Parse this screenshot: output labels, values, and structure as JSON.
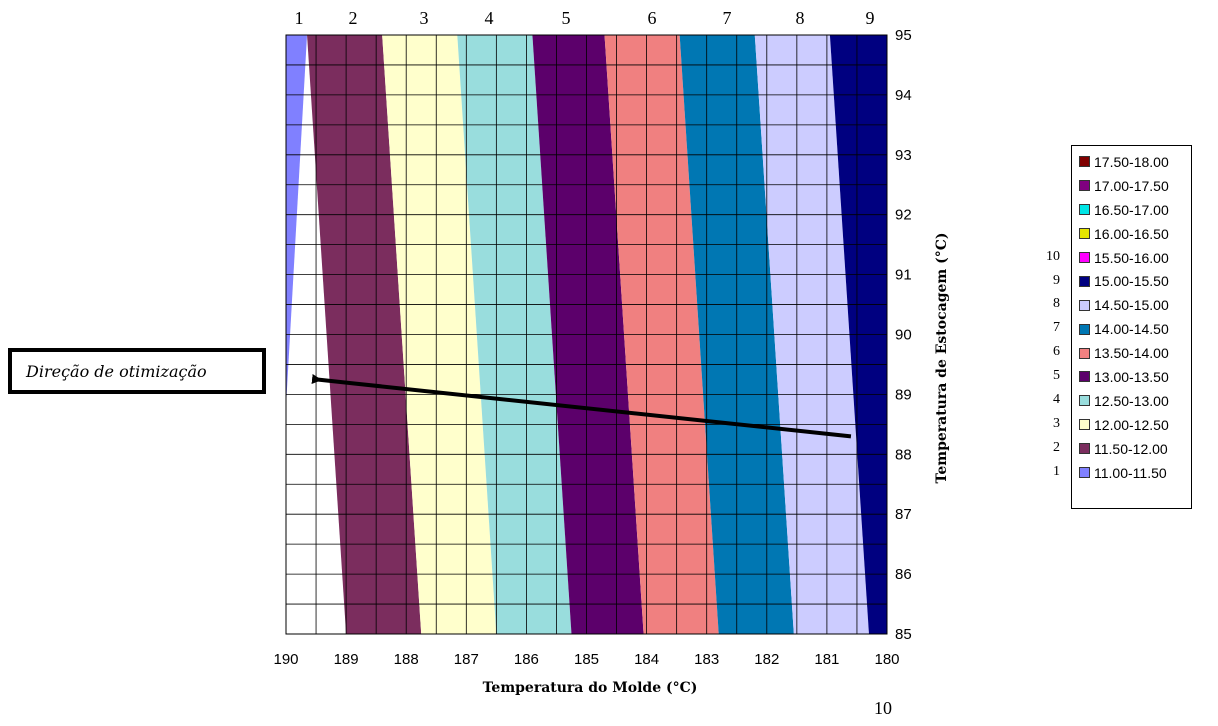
{
  "chart_data": {
    "type": "contour",
    "title": "",
    "xlabel": "Temperatura do Molde (°C)",
    "ylabel": "Temperatura de Estocagem (°C)",
    "x_ticks": [
      190,
      189,
      188,
      187,
      186,
      185,
      184,
      183,
      182,
      181,
      180
    ],
    "y_ticks": [
      85,
      86,
      87,
      88,
      89,
      90,
      91,
      92,
      93,
      94,
      95
    ],
    "xlim": [
      190,
      180
    ],
    "ylim": [
      85,
      95
    ],
    "grid": true,
    "legend_position": "right",
    "bands": [
      {
        "range": "11.00-11.50",
        "color": "#8080ff",
        "number": "1",
        "x_bottom": 190.0,
        "x_top": 190.0
      },
      {
        "range": "11.50-12.00",
        "color": "#7b2d5e",
        "number": "2",
        "x_bottom": 189.0,
        "x_top": 189.65
      },
      {
        "range": "12.00-12.50",
        "color": "#ffffcc",
        "number": "3",
        "x_bottom": 187.75,
        "x_top": 188.4
      },
      {
        "range": "12.50-13.00",
        "color": "#99dddd",
        "number": "4",
        "x_bottom": 186.5,
        "x_top": 187.15
      },
      {
        "range": "13.00-13.50",
        "color": "#5c006b",
        "number": "5",
        "x_bottom": 185.25,
        "x_top": 185.9
      },
      {
        "range": "13.50-14.00",
        "color": "#f08080",
        "number": "6",
        "x_bottom": 184.05,
        "x_top": 184.7
      },
      {
        "range": "14.00-14.50",
        "color": "#0077b3",
        "number": "7",
        "x_bottom": 182.8,
        "x_top": 183.45
      },
      {
        "range": "14.50-15.00",
        "color": "#ccccff",
        "number": "8",
        "x_bottom": 181.55,
        "x_top": 182.2
      },
      {
        "range": "15.00-15.50",
        "color": "#000080",
        "number": "9",
        "x_bottom": 180.3,
        "x_top": 180.95
      },
      {
        "range": "15.50-16.00",
        "color": "#ff00ff",
        "number": "10",
        "x_bottom": 180.0,
        "x_top": 180.0
      }
    ],
    "legend": [
      {
        "label": "17.50-18.00",
        "color": "#800000",
        "number": ""
      },
      {
        "label": "17.00-17.50",
        "color": "#800080",
        "number": ""
      },
      {
        "label": "16.50-17.00",
        "color": "#00e5e5",
        "number": ""
      },
      {
        "label": "16.00-16.50",
        "color": "#e5e500",
        "number": ""
      },
      {
        "label": "15.50-16.00",
        "color": "#ff00ff",
        "number": "10"
      },
      {
        "label": "15.00-15.50",
        "color": "#000080",
        "number": "9"
      },
      {
        "label": "14.50-15.00",
        "color": "#ccccff",
        "number": "8"
      },
      {
        "label": "14.00-14.50",
        "color": "#0077b3",
        "number": "7"
      },
      {
        "label": "13.50-14.00",
        "color": "#f08080",
        "number": "6"
      },
      {
        "label": "13.00-13.50",
        "color": "#5c006b",
        "number": "5"
      },
      {
        "label": "12.50-13.00",
        "color": "#99dddd",
        "number": "4"
      },
      {
        "label": "12.00-12.50",
        "color": "#ffffcc",
        "number": "3"
      },
      {
        "label": "11.50-12.00",
        "color": "#7b2d5e",
        "number": "2"
      },
      {
        "label": "11.00-11.50",
        "color": "#8080ff",
        "number": "1"
      }
    ],
    "annotation": {
      "text": "Direção de otimização",
      "arrow_from": {
        "x": 180.6,
        "y": 88.3
      },
      "arrow_to": {
        "x": 189.5,
        "y": 89.25
      }
    }
  },
  "page_number": "10"
}
